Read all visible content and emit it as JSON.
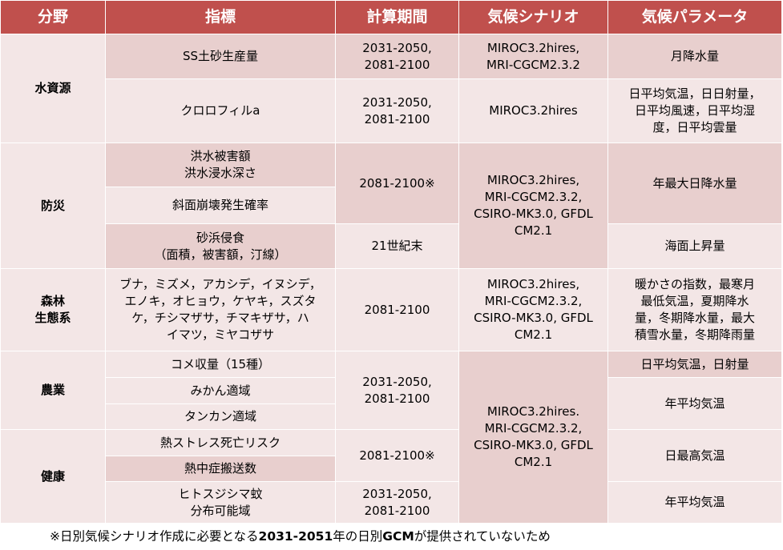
{
  "header": {
    "field": "分野",
    "indicator": "指標",
    "period": "計算期間",
    "scenario": "気候シナリオ",
    "parameter": "気候パラメータ"
  },
  "colors": {
    "header_bg": "#c0504d",
    "cell_dark": "#e8cfce",
    "cell_light": "#f3e6e6"
  },
  "sections": [
    {
      "field": "水資源",
      "rows": [
        {
          "indicator": "SS土砂生産量",
          "period": "2031-2050,\n2081-2100",
          "scenario": "MIROC3.2hires,\nMRI-CGCM2.3.2",
          "parameter": "月降水量"
        },
        {
          "indicator": "クロロフィルa",
          "period": "2031-2050,\n2081-2100",
          "scenario": "MIROC3.2hires",
          "parameter": "日平均気温，日日射量，\n日平均風速，日平均湿\n度，日平均雲量"
        }
      ]
    },
    {
      "field": "防災",
      "rows": [
        {
          "indicator": "洪水被害額\n洪水浸水深さ",
          "period": "2081-2100※",
          "scenario": "MIROC3.2hires,\nMRI-CGCM2.3.2,\nCSIRO-MK3.0, GFDL\nCM2.1",
          "parameter": "年最大日降水量"
        },
        {
          "indicator": "斜面崩壊発生確率"
        },
        {
          "indicator": "砂浜侵食\n（面積，被害額，汀線）",
          "period": "21世紀末",
          "scenario": "MRI-CGCM2.3.2",
          "parameter": "海面上昇量"
        }
      ]
    },
    {
      "field": "森林\n生態系",
      "rows": [
        {
          "indicator": "ブナ，ミズメ，アカシデ，イヌシデ，\nエノキ，オヒョウ，ケヤキ，スズタ\nケ，チシマザサ，チマキザサ，ハ\nイマツ，ミヤコザサ",
          "period": "2081-2100",
          "scenario": "MIROC3.2hires,\nMRI-CGCM2.3.2,\nCSIRO-MK3.0, GFDL\nCM2.1",
          "parameter": "暖かさの指数，最寒月\n最低気温，夏期降水\n量，冬期降水量，最大\n積雪水量，冬期降雨量"
        }
      ]
    },
    {
      "field": "農業",
      "rows": [
        {
          "indicator": "コメ収量（15種）",
          "period": "2031-2050,\n2081-2100",
          "scenario": "MIROC3.2hires.\nMRI-CGCM2.3.2,\nCSIRO-MK3.0, GFDL\nCM2.1",
          "parameter": "日平均気温，日射量"
        },
        {
          "indicator": "みかん適域",
          "parameter": "年平均気温"
        },
        {
          "indicator": "タンカン適域"
        }
      ]
    },
    {
      "field": "健康",
      "rows": [
        {
          "indicator": "熱ストレス死亡リスク",
          "period": "2081-2100※",
          "parameter": "日最高気温"
        },
        {
          "indicator": "熱中症搬送数"
        },
        {
          "indicator": "ヒトスジシマ蚊\n分布可能域",
          "period": "2031-2050,\n2081-2100",
          "parameter": "年平均気温"
        }
      ]
    }
  ],
  "footnote": {
    "prefix": "※日別気候シナリオ作成に必要となる",
    "bold1": "2031-2051",
    "middle": "年の日別",
    "bold2": "GCM",
    "suffix": "が提供されていないため"
  }
}
